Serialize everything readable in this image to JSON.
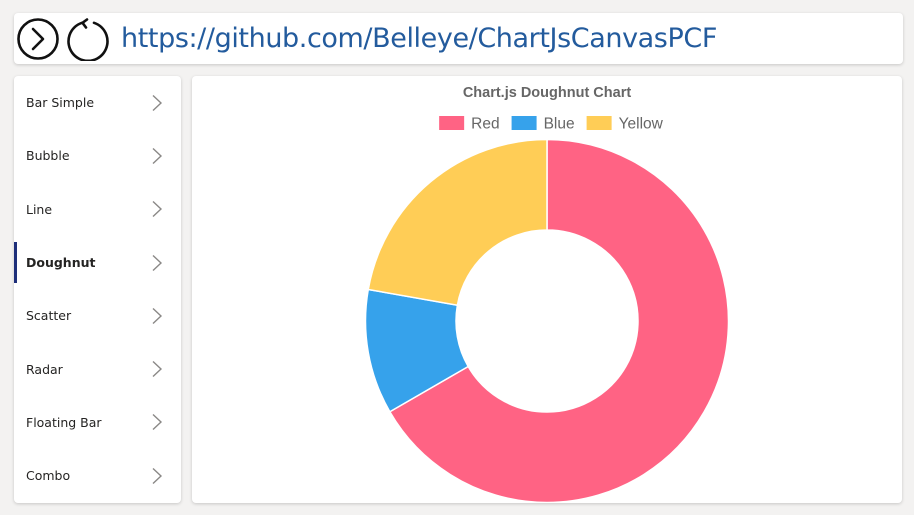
{
  "address_bar": {
    "url": "https://github.com/Belleye/ChartJsCanvasPCF"
  },
  "nav": {
    "go_icon": "chevron-right-circle-icon",
    "refresh_icon": "refresh-icon"
  },
  "sidebar": {
    "items": [
      {
        "label": "Bar Simple",
        "active": false
      },
      {
        "label": "Bubble",
        "active": false
      },
      {
        "label": "Line",
        "active": false
      },
      {
        "label": "Doughnut",
        "active": true
      },
      {
        "label": "Scatter",
        "active": false
      },
      {
        "label": "Radar",
        "active": false
      },
      {
        "label": "Floating Bar",
        "active": false
      },
      {
        "label": "Combo",
        "active": false
      }
    ]
  },
  "chart_data": {
    "type": "doughnut",
    "title": "Chart.js Doughnut Chart",
    "legend_position": "top",
    "categories": [
      "Red",
      "Blue",
      "Yellow"
    ],
    "values": [
      300,
      50,
      100
    ],
    "colors": [
      "#ff6384",
      "#36a2eb",
      "#ffcd56"
    ]
  }
}
